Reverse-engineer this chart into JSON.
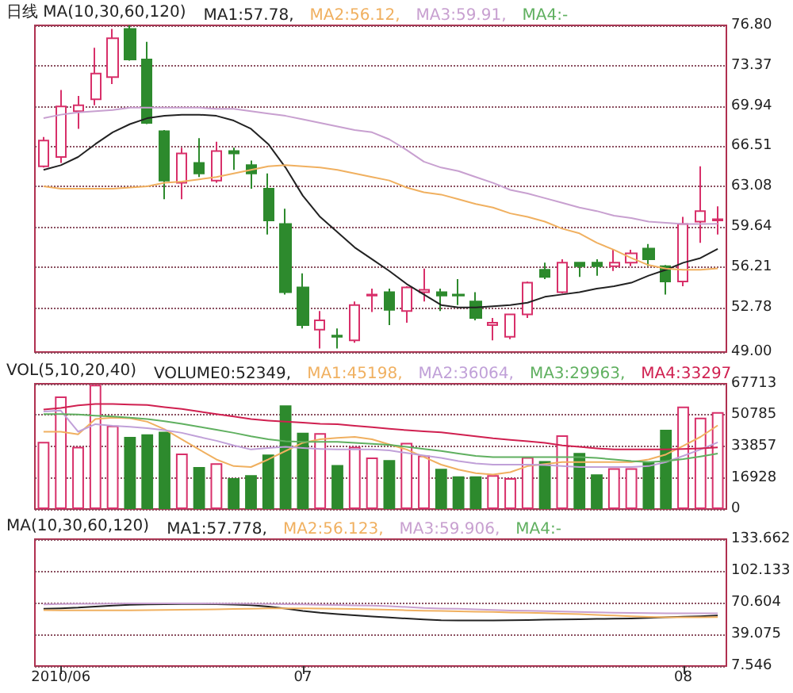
{
  "chart_data": [
    {
      "type": "candlestick",
      "title": "日线 MA(10,30,60,120)",
      "categories": [
        null,
        "2010/06",
        null,
        null,
        null,
        null,
        null,
        null,
        null,
        null,
        null,
        null,
        null,
        null,
        null,
        "07",
        null,
        null,
        null,
        null,
        null,
        null,
        null,
        null,
        null,
        null,
        null,
        null,
        null,
        null,
        null,
        null,
        null,
        null,
        null,
        null,
        null,
        "08",
        null,
        null
      ],
      "ohlc": [
        [
          64.8,
          67.3,
          64.7,
          67.0
        ],
        [
          65.6,
          71.3,
          65.1,
          69.9
        ],
        [
          69.5,
          70.8,
          68.0,
          70.0
        ],
        [
          70.5,
          74.9,
          70.0,
          72.7
        ],
        [
          72.4,
          76.5,
          71.8,
          75.7
        ],
        [
          76.5,
          76.8,
          73.8,
          73.9
        ],
        [
          73.9,
          75.4,
          68.4,
          68.5
        ],
        [
          67.8,
          67.9,
          62.0,
          63.6
        ],
        [
          63.4,
          66.4,
          62.0,
          65.9
        ],
        [
          65.1,
          67.2,
          63.9,
          64.2
        ],
        [
          63.6,
          66.9,
          63.4,
          66.1
        ],
        [
          66.1,
          66.4,
          64.5,
          65.9
        ],
        [
          64.9,
          65.3,
          62.9,
          64.2
        ],
        [
          62.9,
          64.2,
          59.0,
          60.2
        ],
        [
          59.9,
          61.2,
          53.9,
          54.1
        ],
        [
          54.5,
          55.7,
          51.0,
          51.3
        ],
        [
          50.9,
          52.5,
          49.3,
          51.7
        ],
        [
          50.4,
          51.0,
          49.3,
          50.3
        ],
        [
          50.0,
          53.3,
          49.8,
          53.0
        ],
        [
          53.8,
          54.4,
          52.4,
          53.9
        ],
        [
          54.1,
          54.4,
          51.3,
          52.6
        ],
        [
          52.5,
          54.6,
          51.5,
          54.5
        ],
        [
          54.1,
          56.1,
          53.3,
          54.3
        ],
        [
          54.1,
          54.4,
          52.5,
          53.8
        ],
        [
          53.9,
          55.2,
          53.0,
          53.8
        ],
        [
          53.3,
          54.1,
          51.7,
          51.9
        ],
        [
          51.3,
          51.9,
          50.0,
          51.5
        ],
        [
          50.3,
          52.2,
          50.1,
          52.2
        ],
        [
          52.2,
          55.0,
          51.9,
          54.9
        ],
        [
          56.0,
          56.6,
          55.2,
          55.4
        ],
        [
          54.1,
          56.9,
          54.0,
          56.6
        ],
        [
          56.6,
          56.6,
          55.4,
          56.3
        ],
        [
          56.6,
          56.9,
          55.5,
          56.3
        ],
        [
          56.3,
          57.7,
          55.9,
          56.6
        ],
        [
          56.6,
          57.7,
          56.3,
          57.4
        ],
        [
          57.8,
          58.2,
          56.3,
          56.9
        ],
        [
          56.3,
          56.4,
          53.9,
          55.0
        ],
        [
          55.0,
          60.5,
          54.6,
          59.9
        ],
        [
          60.1,
          64.8,
          58.3,
          61.0
        ],
        [
          60.2,
          61.4,
          59.0,
          60.3
        ]
      ],
      "colors": [
        "#d8306a",
        "#d8306a",
        "#d8306a",
        "#d8306a",
        "#d8306a",
        "#2d8a2d",
        "#2d8a2d",
        "#2d8a2d",
        "#d8306a",
        "#2d8a2d",
        "#d8306a",
        "#2d8a2d",
        "#2d8a2d",
        "#2d8a2d",
        "#2d8a2d",
        "#2d8a2d",
        "#d8306a",
        "#2d8a2d",
        "#d8306a",
        "#d8306a",
        "#2d8a2d",
        "#d8306a",
        "#d8306a",
        "#2d8a2d",
        "#2d8a2d",
        "#2d8a2d",
        "#d8306a",
        "#d8306a",
        "#d8306a",
        "#2d8a2d",
        "#d8306a",
        "#2d8a2d",
        "#2d8a2d",
        "#d8306a",
        "#d8306a",
        "#2d8a2d",
        "#2d8a2d",
        "#d8306a",
        "#d8306a",
        "#d8306a"
      ],
      "series": [
        {
          "type": "line",
          "name": "MA1:57.78,",
          "color": "#222222",
          "values": [
            64.5,
            64.9,
            65.6,
            66.7,
            67.7,
            68.4,
            68.9,
            69.1,
            69.2,
            69.2,
            69.1,
            68.7,
            68.0,
            66.7,
            64.7,
            62.3,
            60.5,
            59.2,
            57.9,
            56.9,
            55.9,
            54.8,
            53.9,
            53.0,
            52.8,
            52.8,
            52.9,
            53.0,
            53.2,
            53.7,
            53.9,
            54.1,
            54.4,
            54.6,
            54.9,
            55.5,
            56.0,
            56.6,
            57.0,
            57.78
          ]
        },
        {
          "type": "line",
          "name": "MA2:56.12,",
          "color": "#f0b060",
          "values": [
            63.1,
            62.9,
            62.9,
            62.9,
            62.9,
            63.0,
            63.1,
            63.4,
            63.5,
            63.7,
            63.9,
            64.2,
            64.5,
            64.8,
            64.9,
            64.8,
            64.7,
            64.5,
            64.2,
            63.9,
            63.6,
            63.0,
            62.6,
            62.4,
            62.0,
            61.6,
            61.3,
            60.8,
            60.5,
            60.1,
            59.5,
            59.1,
            58.3,
            57.7,
            57.0,
            56.4,
            56.1,
            56.0,
            56.0,
            56.12
          ]
        },
        {
          "type": "line",
          "name": "MA3:59.91,",
          "color": "#c8a0d0",
          "values": [
            68.9,
            69.2,
            69.4,
            69.5,
            69.6,
            69.8,
            69.8,
            69.8,
            69.8,
            69.8,
            69.7,
            69.7,
            69.5,
            69.3,
            69.1,
            68.8,
            68.5,
            68.2,
            67.9,
            67.7,
            67.1,
            66.2,
            65.2,
            64.7,
            64.4,
            63.9,
            63.4,
            62.8,
            62.5,
            62.1,
            61.7,
            61.3,
            61.0,
            60.6,
            60.4,
            60.1,
            60.0,
            59.9,
            59.9,
            59.91
          ]
        },
        {
          "type": "line",
          "name": "MA4:-",
          "color": "#60b060",
          "values": [
            null,
            null,
            null,
            null,
            null,
            null,
            null,
            null,
            null,
            null,
            null,
            null,
            null,
            null,
            null,
            null,
            null,
            null,
            null,
            null,
            null,
            null,
            null,
            null,
            null,
            null,
            null,
            null,
            null,
            null,
            null,
            null,
            null,
            null,
            null,
            null,
            null,
            null,
            null,
            null
          ]
        }
      ],
      "ylim": [
        49.0,
        76.8
      ],
      "yticks": [
        {
          "value": 49.0,
          "label": "49.00"
        },
        52.78,
        56.21,
        59.64,
        63.08,
        66.51,
        69.94,
        73.37,
        {
          "value": 76.8,
          "label": "76.80"
        }
      ],
      "grid": "y",
      "legend": "top left",
      "marker": "none",
      "tick_labels": "y"
    },
    {
      "type": "bar",
      "title": "VOL(5,10,20,40)",
      "categories": [
        null,
        "2010/06",
        null,
        null,
        null,
        null,
        null,
        null,
        null,
        null,
        null,
        null,
        null,
        null,
        null,
        "07",
        null,
        null,
        null,
        null,
        null,
        null,
        null,
        null,
        null,
        null,
        null,
        null,
        null,
        null,
        null,
        null,
        null,
        null,
        null,
        null,
        null,
        "08",
        null,
        null
      ],
      "series": [
        {
          "type": "bar",
          "name": "VOLUME0:52349,",
          "colors": [
            "#d8306a",
            "#d8306a",
            "#d8306a",
            "#d8306a",
            "#d8306a",
            "#2d8a2d",
            "#2d8a2d",
            "#2d8a2d",
            "#d8306a",
            "#2d8a2d",
            "#d8306a",
            "#2d8a2d",
            "#2d8a2d",
            "#2d8a2d",
            "#2d8a2d",
            "#2d8a2d",
            "#d8306a",
            "#2d8a2d",
            "#d8306a",
            "#d8306a",
            "#2d8a2d",
            "#d8306a",
            "#d8306a",
            "#2d8a2d",
            "#2d8a2d",
            "#2d8a2d",
            "#d8306a",
            "#d8306a",
            "#d8306a",
            "#2d8a2d",
            "#d8306a",
            "#2d8a2d",
            "#2d8a2d",
            "#d8306a",
            "#d8306a",
            "#2d8a2d",
            "#2d8a2d",
            "#d8306a",
            "#d8306a",
            "#d8306a"
          ],
          "values": [
            36300,
            60900,
            33600,
            67200,
            45100,
            39000,
            40400,
            41800,
            30000,
            22700,
            24800,
            16700,
            18300,
            29500,
            56000,
            41200,
            41000,
            23800,
            33600,
            27900,
            26500,
            35800,
            28900,
            21800,
            17700,
            17700,
            18300,
            16700,
            28100,
            25900,
            39900,
            30300,
            18800,
            22100,
            22100,
            25400,
            42900,
            55400,
            49400,
            52349
          ]
        },
        {
          "type": "line",
          "name": "MA1:45198,",
          "color": "#f0b060",
          "values": [
            41800,
            41800,
            40400,
            48600,
            49400,
            49100,
            47200,
            43100,
            37700,
            32200,
            26800,
            23200,
            22700,
            26800,
            31400,
            35800,
            37700,
            38500,
            39000,
            37700,
            34900,
            32200,
            28100,
            24000,
            21300,
            19400,
            18600,
            19900,
            23200,
            24300,
            25400,
            25400,
            25400,
            25400,
            25400,
            26800,
            29500,
            34100,
            39000,
            45198
          ]
        },
        {
          "type": "line",
          "name": "MA2:36064,",
          "color": "#c0a0d8",
          "values": [
            52700,
            53200,
            41800,
            45900,
            45000,
            44500,
            43700,
            42600,
            41200,
            39000,
            36900,
            34400,
            32200,
            33000,
            33600,
            33000,
            32500,
            32200,
            32200,
            32200,
            31700,
            30300,
            28900,
            27600,
            25900,
            24600,
            24000,
            24000,
            24000,
            23800,
            23200,
            22700,
            22700,
            22700,
            22700,
            23200,
            25400,
            28700,
            32200,
            36064
          ]
        },
        {
          "type": "line",
          "name": "MA3:29963,",
          "color": "#60b060",
          "values": [
            51300,
            51300,
            51100,
            50500,
            50000,
            49400,
            48600,
            47500,
            46100,
            44500,
            42900,
            41200,
            39300,
            37700,
            36600,
            36300,
            36300,
            36300,
            35800,
            35200,
            34700,
            33600,
            32500,
            31400,
            30000,
            28700,
            28100,
            28100,
            28100,
            28100,
            28100,
            28100,
            27600,
            26800,
            25900,
            25400,
            25900,
            27000,
            28400,
            29963
          ]
        },
        {
          "type": "line",
          "name": "MA4:33297",
          "color": "#d02050",
          "values": [
            53800,
            54600,
            56000,
            56800,
            56800,
            56500,
            56200,
            55100,
            54100,
            52700,
            51300,
            50000,
            48600,
            47800,
            47200,
            46700,
            46100,
            45900,
            45000,
            44200,
            43400,
            42600,
            42000,
            41500,
            40400,
            39300,
            38200,
            37400,
            36600,
            35800,
            34400,
            33600,
            32800,
            32200,
            32200,
            32200,
            32200,
            32500,
            32800,
            33297
          ]
        }
      ],
      "ylim": [
        0,
        67713
      ],
      "yticks": [
        0,
        16928,
        33857,
        50785,
        67713
      ],
      "grid": "y",
      "legend": "top",
      "marker": "none",
      "tick_labels": "y"
    },
    {
      "type": "line",
      "title": "MA(10,30,60,120)",
      "categories": [
        null,
        "2010/06",
        null,
        null,
        null,
        null,
        null,
        null,
        null,
        null,
        null,
        null,
        null,
        null,
        null,
        "07",
        null,
        null,
        null,
        null,
        null,
        null,
        null,
        null,
        null,
        null,
        null,
        null,
        null,
        null,
        null,
        null,
        null,
        null,
        null,
        null,
        null,
        "08",
        null,
        null
      ],
      "series": [
        {
          "name": "MA1:57.778,",
          "color": "#222222",
          "values": [
            64.5,
            64.9,
            65.6,
            66.7,
            67.7,
            68.4,
            68.9,
            69.1,
            69.2,
            69.2,
            69.1,
            68.7,
            68.0,
            66.7,
            64.7,
            62.3,
            60.5,
            59.2,
            57.9,
            56.9,
            55.9,
            54.8,
            53.9,
            53.0,
            52.8,
            52.8,
            52.9,
            53.0,
            53.2,
            53.7,
            53.9,
            54.1,
            54.4,
            54.6,
            54.9,
            55.5,
            56.0,
            56.6,
            57.0,
            57.778
          ]
        },
        {
          "name": "MA2:56.123,",
          "color": "#f0b060",
          "values": [
            63.1,
            62.9,
            62.9,
            62.9,
            62.9,
            63.0,
            63.1,
            63.4,
            63.5,
            63.7,
            63.9,
            64.2,
            64.5,
            64.8,
            64.9,
            64.8,
            64.7,
            64.5,
            64.2,
            63.9,
            63.6,
            63.0,
            62.6,
            62.4,
            62.0,
            61.6,
            61.3,
            60.8,
            60.5,
            60.1,
            59.5,
            59.1,
            58.3,
            57.7,
            57.0,
            56.4,
            56.1,
            56.0,
            56.0,
            56.123
          ]
        },
        {
          "name": "MA3:59.906,",
          "color": "#c8a0d0",
          "values": [
            68.9,
            69.2,
            69.4,
            69.5,
            69.6,
            69.8,
            69.8,
            69.8,
            69.8,
            69.8,
            69.7,
            69.7,
            69.5,
            69.3,
            69.1,
            68.8,
            68.5,
            68.2,
            67.9,
            67.7,
            67.1,
            66.2,
            65.2,
            64.7,
            64.4,
            63.9,
            63.4,
            62.8,
            62.5,
            62.1,
            61.7,
            61.3,
            61.0,
            60.6,
            60.4,
            60.1,
            60.0,
            59.9,
            59.9,
            59.906
          ]
        },
        {
          "name": "MA4:-",
          "color": "#60b060",
          "values": [
            null,
            null,
            null,
            null,
            null,
            null,
            null,
            null,
            null,
            null,
            null,
            null,
            null,
            null,
            null,
            null,
            null,
            null,
            null,
            null,
            null,
            null,
            null,
            null,
            null,
            null,
            null,
            null,
            null,
            null,
            null,
            null,
            null,
            null,
            null,
            null,
            null,
            null,
            null,
            null
          ]
        }
      ],
      "ylim": [
        7.546,
        133.662
      ],
      "yticks": [
        7.546,
        39.075,
        70.604,
        102.133,
        133.662
      ],
      "grid": "y",
      "legend": "top left",
      "marker": "none"
    }
  ]
}
